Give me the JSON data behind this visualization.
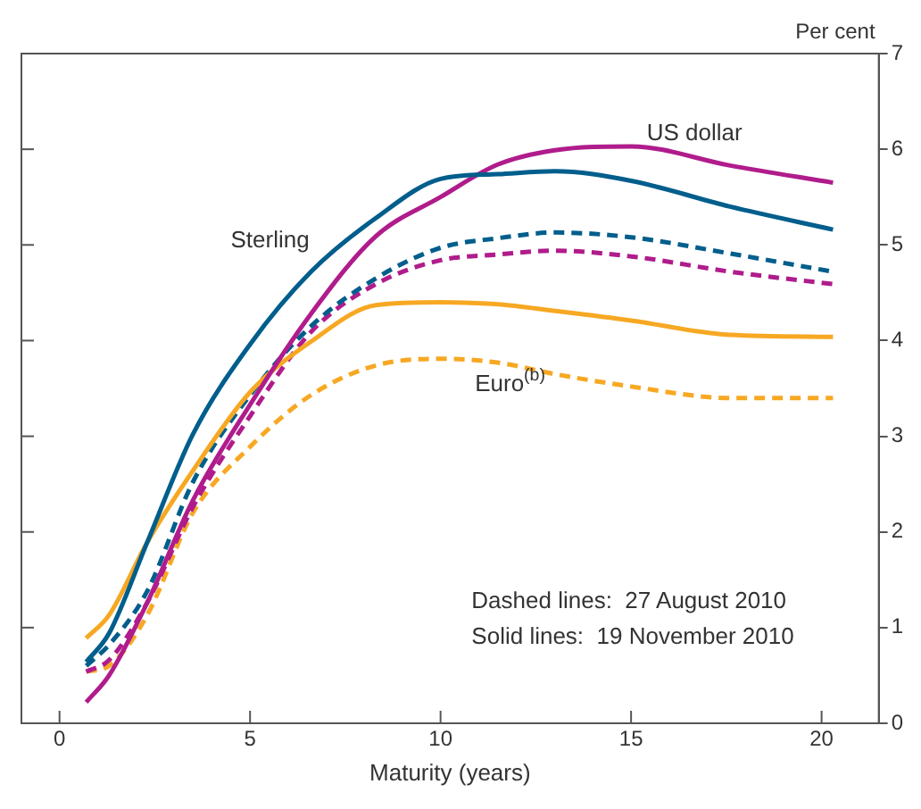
{
  "chart_data": {
    "type": "line",
    "xlabel": "Maturity (years)",
    "ylabel": "Per cent",
    "x": [
      0.7,
      1.3,
      2.3,
      3.5,
      5,
      6.6,
      8.3,
      10,
      11.5,
      13,
      15,
      17.6,
      20.3
    ],
    "series": [
      {
        "name": "Sterling",
        "color": "#005e8c",
        "line_style": "solid",
        "values": [
          0.64,
          0.94,
          1.89,
          3.02,
          3.96,
          4.72,
          5.28,
          5.69,
          5.74,
          5.77,
          5.67,
          5.4,
          5.16
        ]
      },
      {
        "name": "US dollar",
        "color": "#b01c8c",
        "line_style": "solid",
        "values": [
          0.22,
          0.5,
          1.26,
          2.33,
          3.33,
          4.28,
          5.09,
          5.5,
          5.84,
          5.99,
          6.03,
          5.83,
          5.65
        ]
      },
      {
        "name": "Euro$^{(b)}$",
        "color": "#f7a823",
        "line_style": "solid",
        "values": [
          0.89,
          1.13,
          1.89,
          2.64,
          3.46,
          3.99,
          4.37,
          4.4,
          4.38,
          4.31,
          4.21,
          4.06,
          4.04
        ]
      },
      {
        "color": "#005e8c",
        "line_style": "dashed",
        "values": [
          0.6,
          0.82,
          1.38,
          2.52,
          3.43,
          4.15,
          4.65,
          4.97,
          5.07,
          5.13,
          5.08,
          4.91,
          4.72
        ]
      },
      {
        "color": "#b01c8c",
        "line_style": "dashed",
        "values": [
          0.54,
          0.66,
          1.26,
          2.26,
          3.21,
          4.09,
          4.59,
          4.84,
          4.9,
          4.94,
          4.88,
          4.72,
          4.59
        ]
      },
      {
        "color": "#f7a823",
        "line_style": "dashed",
        "values": [
          0.54,
          0.6,
          1.13,
          2.2,
          2.89,
          3.43,
          3.74,
          3.81,
          3.77,
          3.65,
          3.52,
          3.4,
          3.4
        ]
      }
    ],
    "xlim": [
      -1,
      21.5
    ],
    "xticks": [
      0,
      5,
      10,
      15,
      20
    ],
    "ylim": [
      0,
      7
    ],
    "yticks": [
      0,
      1,
      2,
      3,
      4,
      5,
      6,
      7
    ],
    "grid": false,
    "legend": false,
    "marker": "none",
    "annotations": [
      "Dashed lines:  27 August 2010",
      "Solid lines:  19 November 2010"
    ]
  }
}
